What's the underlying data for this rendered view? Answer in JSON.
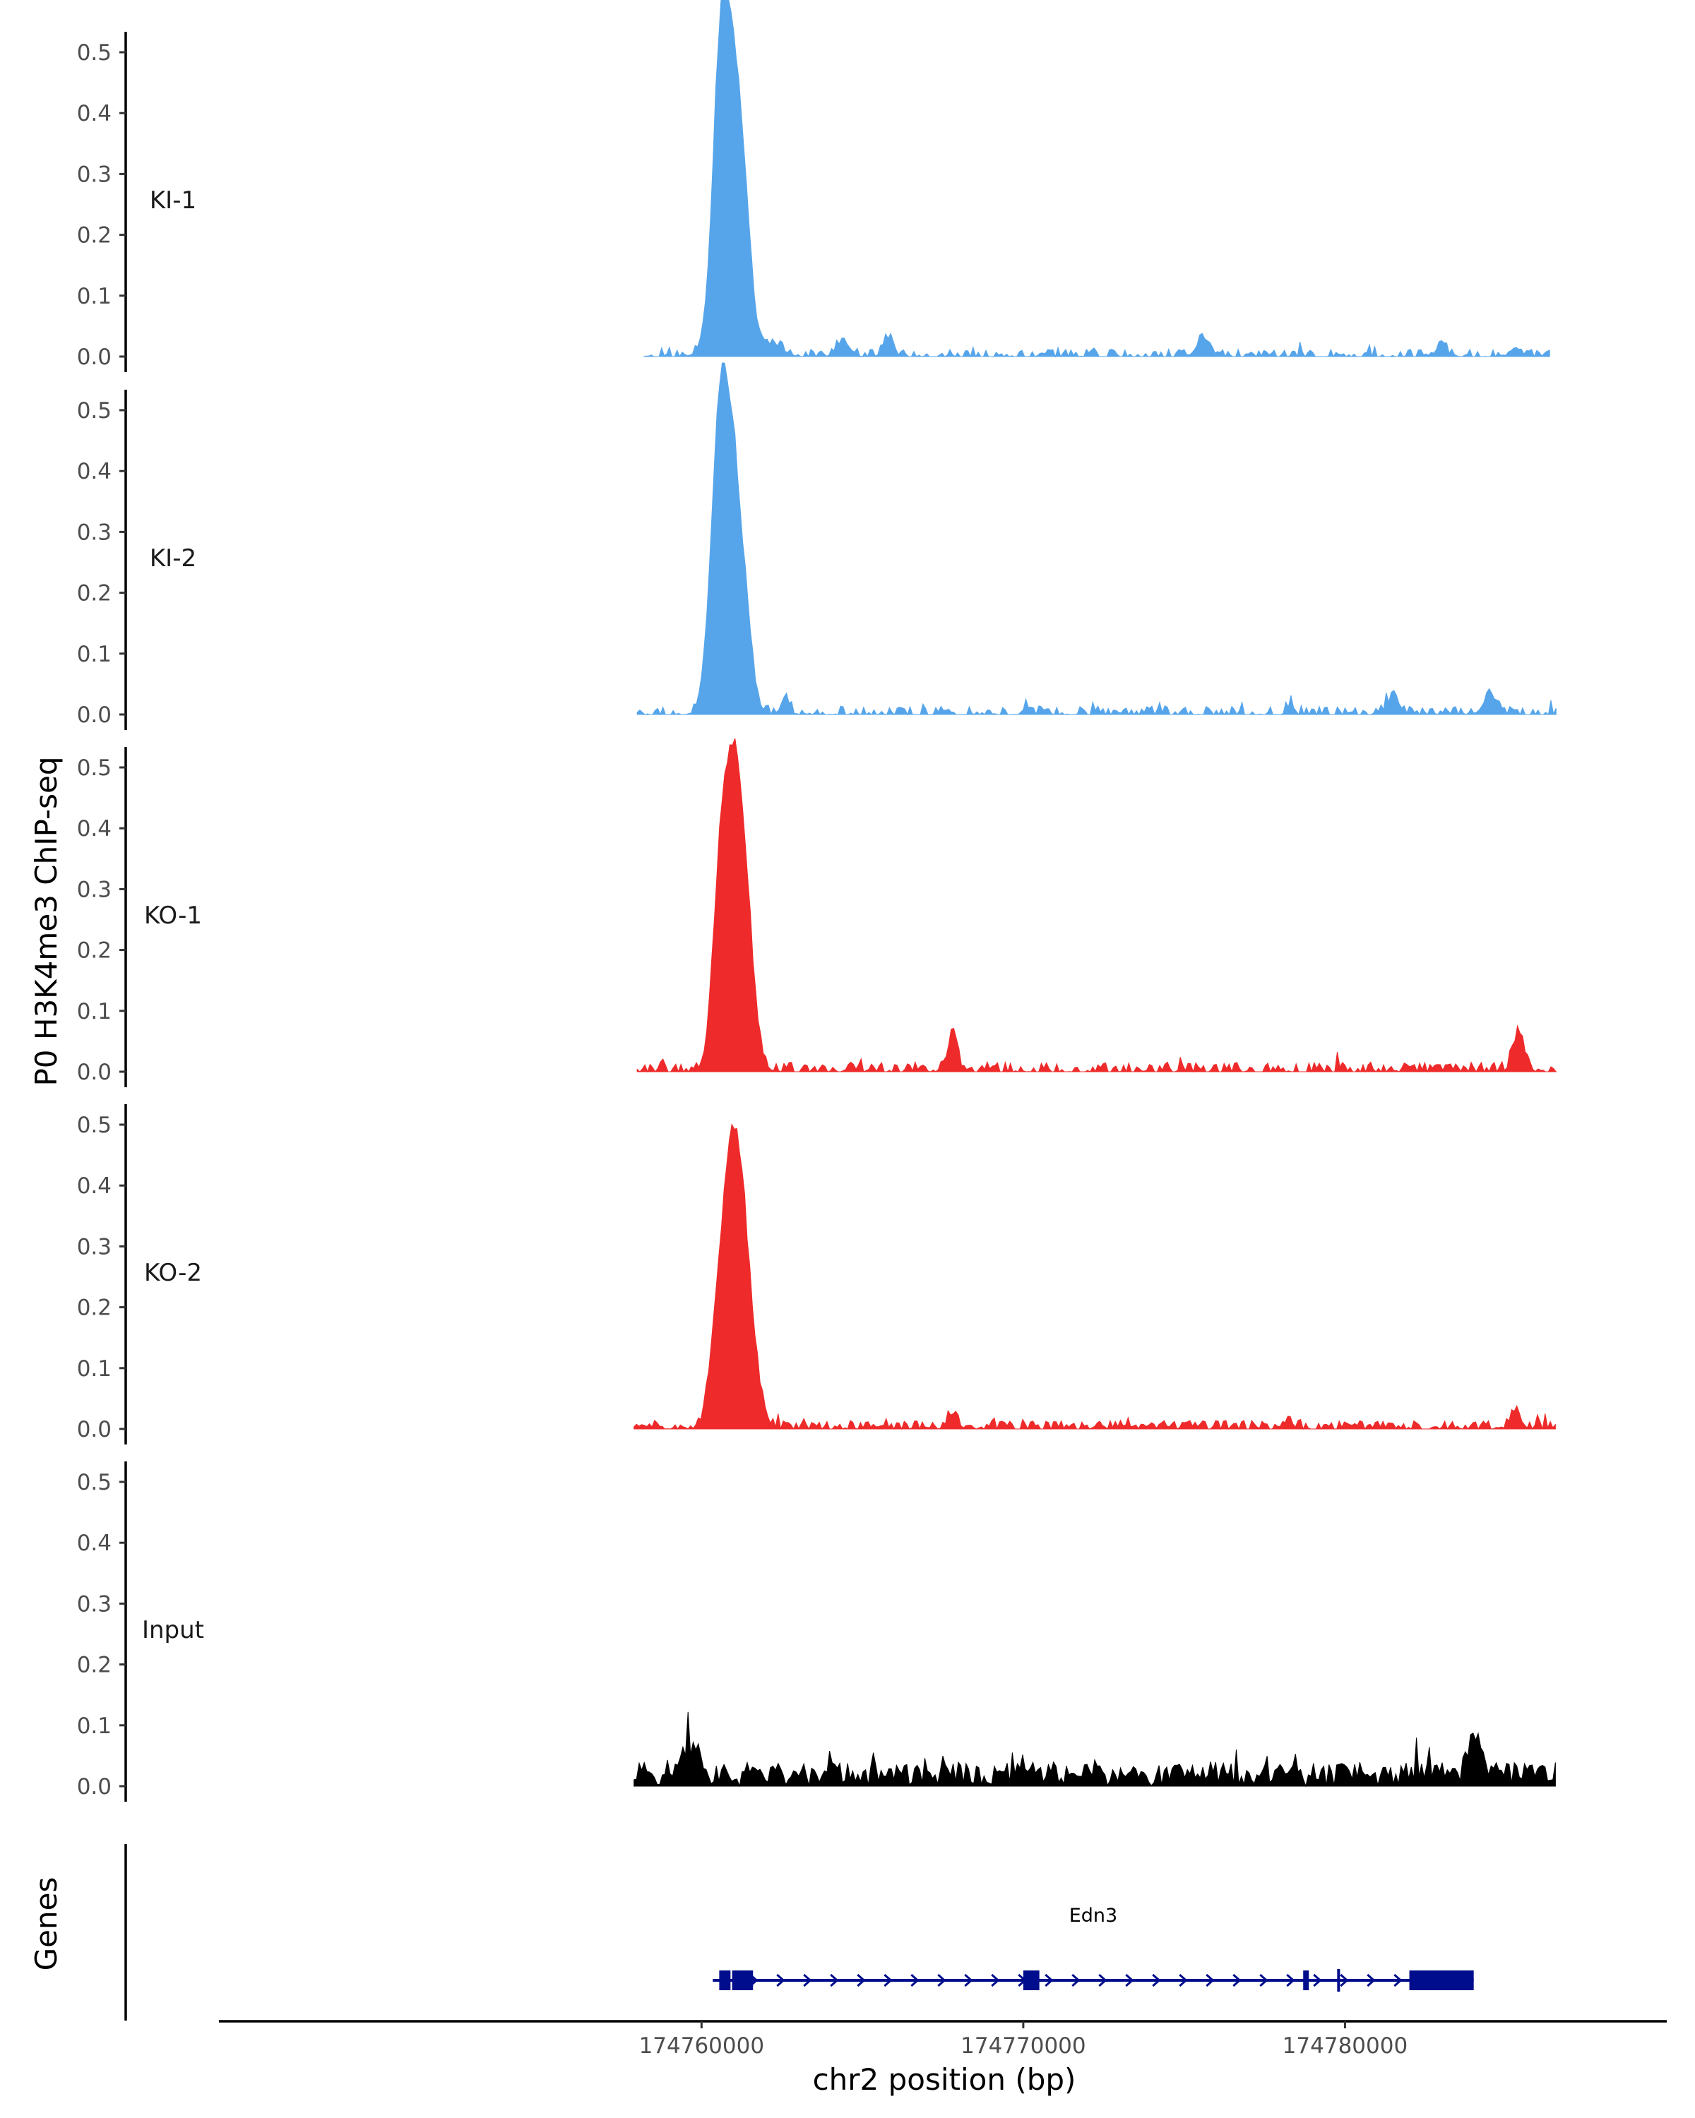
{
  "chart_data": {
    "type": "area",
    "ylabel": "P0 H3K4me3 ChIP-seq",
    "xlabel": "chr2 position (bp)",
    "genes_label": "Genes",
    "xlim": [
      174745000,
      174790000
    ],
    "ylim": [
      0,
      0.52
    ],
    "y_ticks": [
      "0.0",
      "0.1",
      "0.2",
      "0.3",
      "0.4",
      "0.5"
    ],
    "y_tick_values": [
      0,
      0.1,
      0.2,
      0.3,
      0.4,
      0.5
    ],
    "x_ticks": [
      "174760000",
      "174770000",
      "174780000"
    ],
    "x_tick_values": [
      174760000,
      174770000,
      174780000
    ],
    "grid": false,
    "tracks": [
      {
        "name": "KI-1",
        "color": "#56a5ea",
        "peaks": [
          [
            174760800,
            0.51,
            350
          ],
          [
            174761300,
            0.17,
            250
          ],
          [
            174760550,
            0.14,
            200
          ],
          [
            174762200,
            0.02,
            300
          ],
          [
            174764400,
            0.025,
            200
          ],
          [
            174765800,
            0.03,
            150
          ],
          [
            174775600,
            0.03,
            200
          ],
          [
            174783000,
            0.02,
            150
          ],
          [
            174785300,
            0.015,
            150
          ]
        ],
        "noise": 0.012,
        "seed": 11,
        "gap_rate": 0.42,
        "start": 174758200,
        "end": 174786400
      },
      {
        "name": "KI-2",
        "color": "#56a5ea",
        "peaks": [
          [
            174760900,
            0.43,
            350
          ],
          [
            174760500,
            0.28,
            250
          ],
          [
            174761400,
            0.05,
            200
          ],
          [
            174762600,
            0.03,
            120
          ],
          [
            174781500,
            0.025,
            200
          ],
          [
            174784500,
            0.03,
            200
          ]
        ],
        "noise": 0.014,
        "seed": 23,
        "gap_rate": 0.3,
        "start": 174758000,
        "end": 174786600
      },
      {
        "name": "KO-1",
        "color": "#ee2a2a",
        "peaks": [
          [
            174760900,
            0.46,
            330
          ],
          [
            174761350,
            0.2,
            280
          ],
          [
            174760500,
            0.12,
            200
          ],
          [
            174767800,
            0.06,
            150
          ],
          [
            174785400,
            0.065,
            170
          ]
        ],
        "noise": 0.016,
        "seed": 37,
        "gap_rate": 0.32,
        "start": 174758000,
        "end": 174786600
      },
      {
        "name": "KO-2",
        "color": "#ee2a2a",
        "peaks": [
          [
            174760900,
            0.4,
            330
          ],
          [
            174761350,
            0.2,
            320
          ],
          [
            174760400,
            0.07,
            200
          ],
          [
            174767800,
            0.025,
            150
          ],
          [
            174785300,
            0.03,
            150
          ]
        ],
        "noise": 0.014,
        "seed": 51,
        "gap_rate": 0.22,
        "start": 174757900,
        "end": 174786600
      },
      {
        "name": "Input",
        "color": "#000000",
        "peaks": [
          [
            174784000,
            0.07,
            200
          ],
          [
            174759600,
            0.05,
            300
          ]
        ],
        "noise": 0.04,
        "seed": 71,
        "gap_rate": 0.0,
        "start": 174757900,
        "end": 174786600
      }
    ],
    "gene": {
      "name": "Edn3",
      "color": "#000d8c",
      "start": 174760350,
      "end": 174784000,
      "exons": [
        [
          174760550,
          174760900
        ],
        [
          174760950,
          174761600
        ],
        [
          174770000,
          174770500
        ],
        [
          174778700,
          174778850
        ],
        [
          174782000,
          174784000
        ]
      ],
      "marker": 174779800,
      "strand": "+"
    }
  }
}
